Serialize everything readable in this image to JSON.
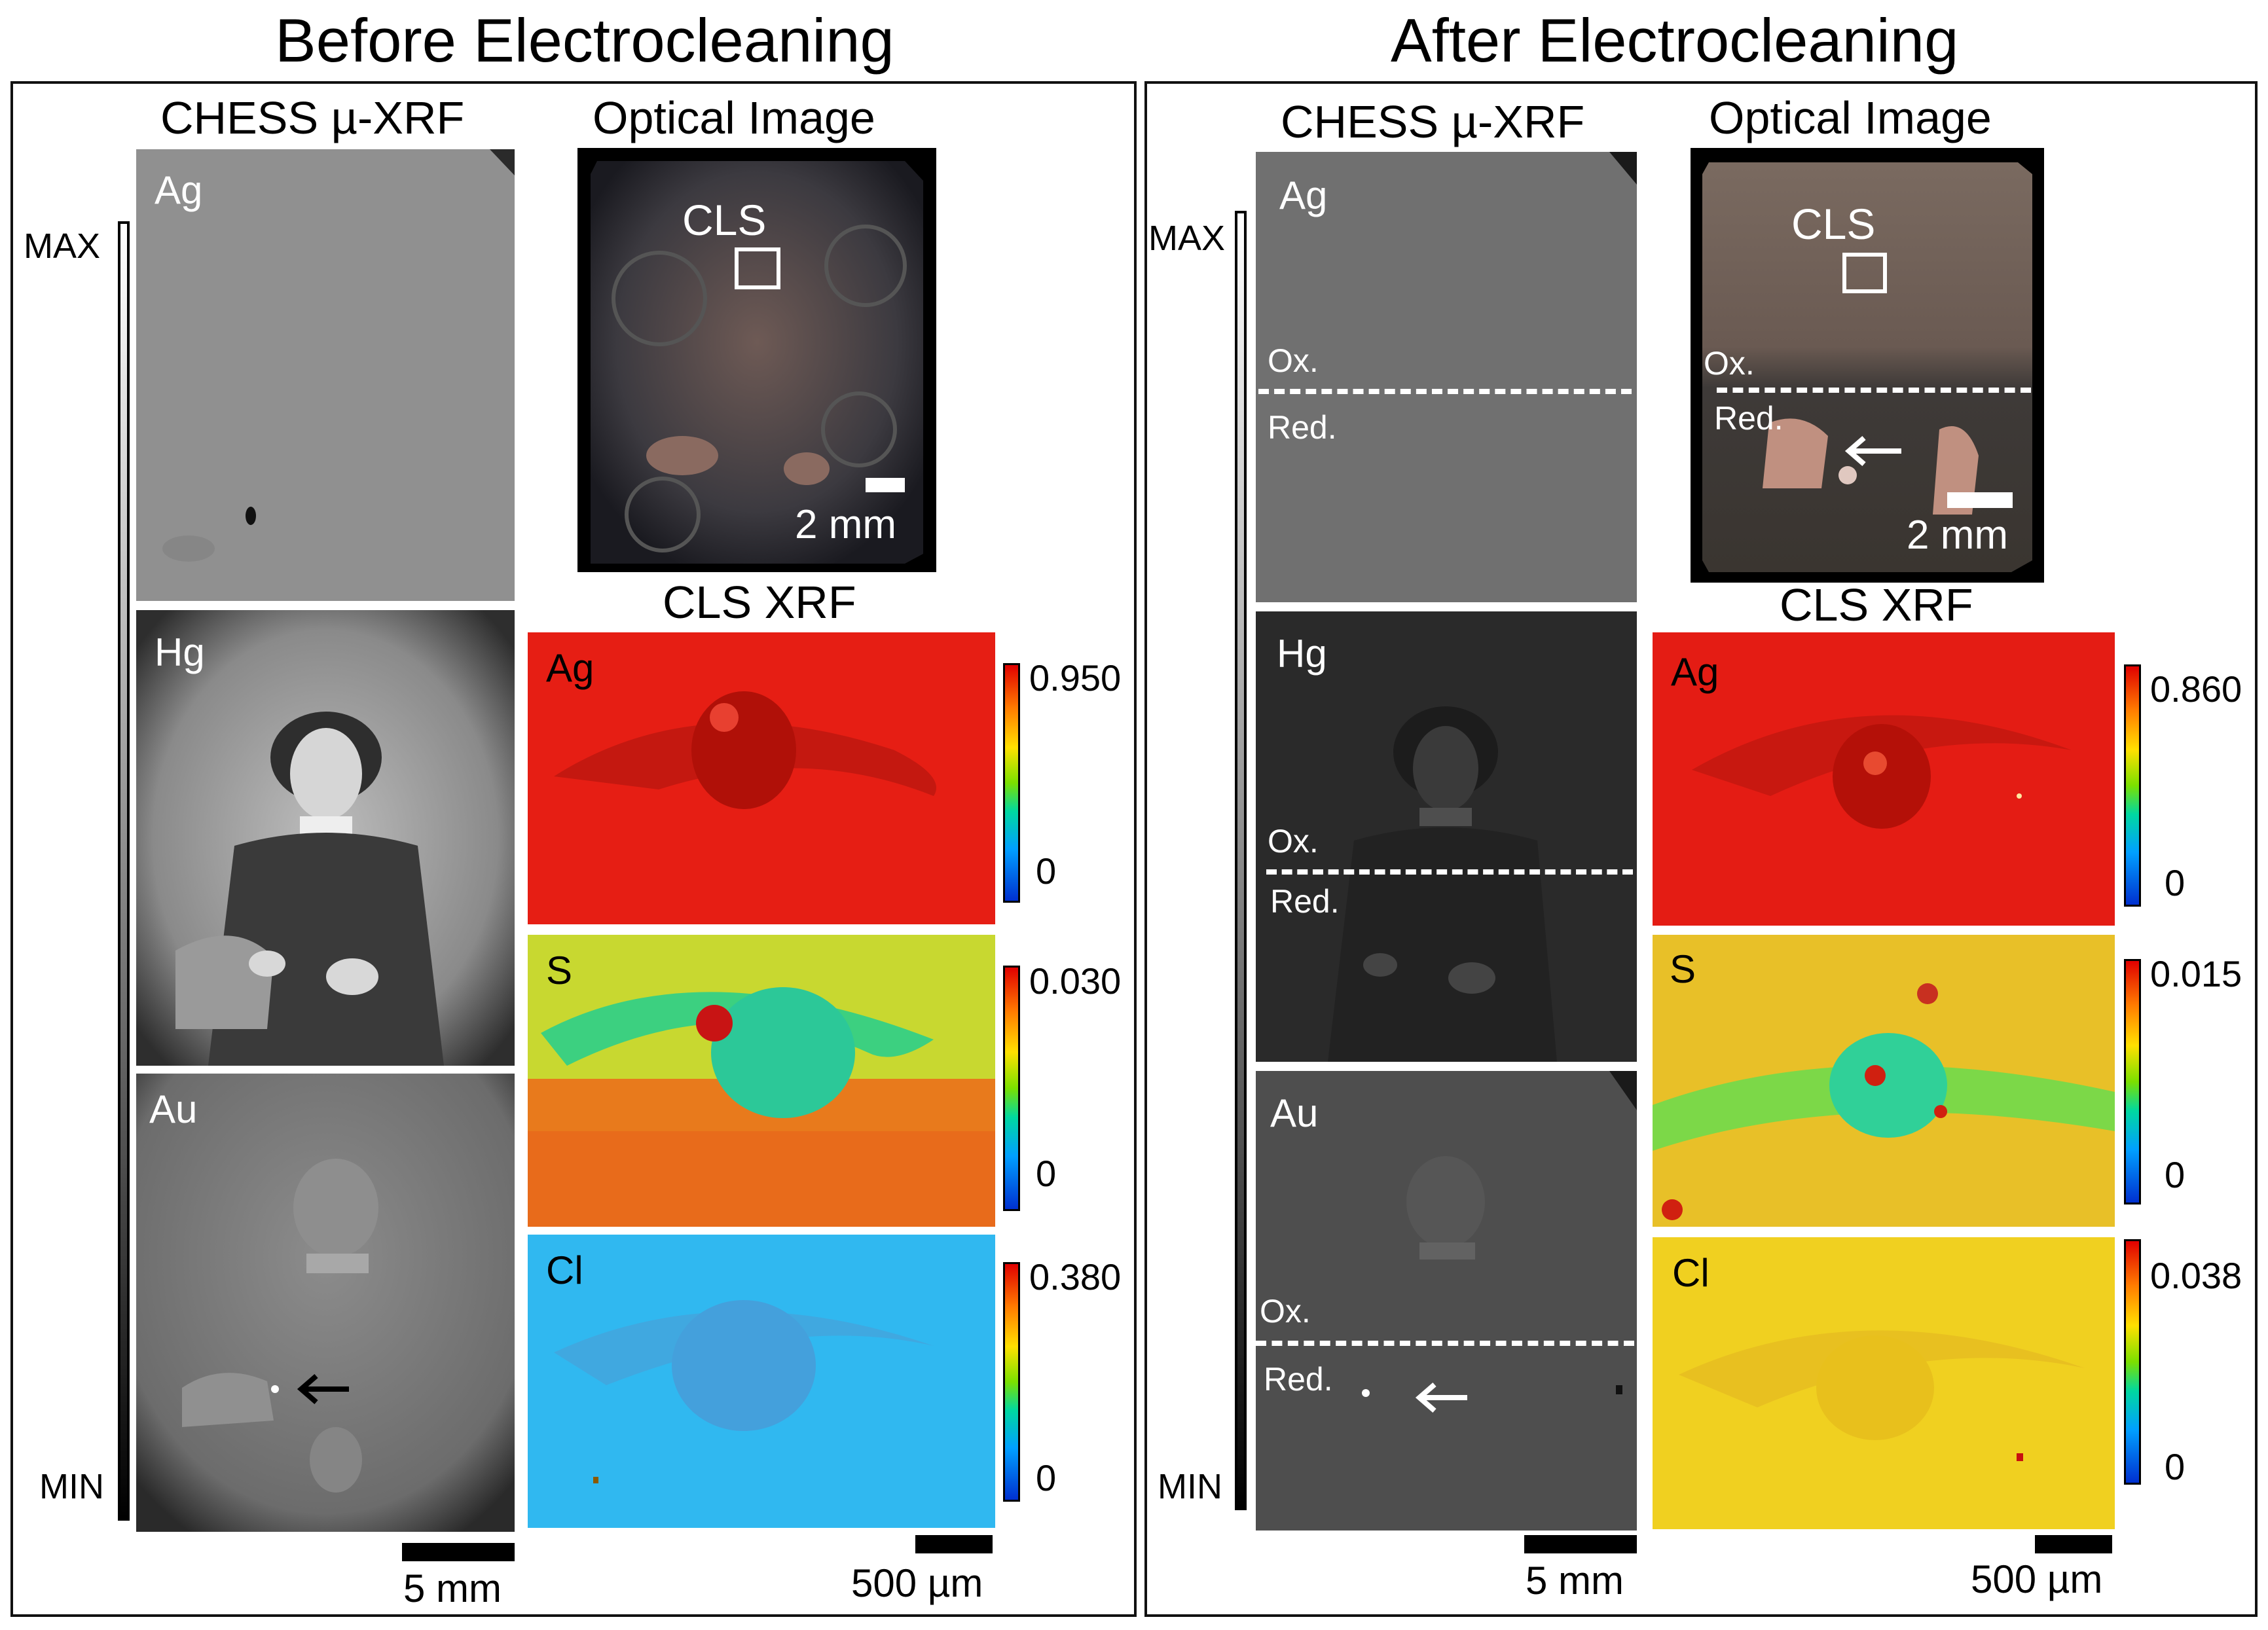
{
  "panels": {
    "before": {
      "title": "Before Electrocleaning",
      "chess_header": "CHESS µ-XRF",
      "optical_header": "Optical Image",
      "cls_header": "CLS XRF",
      "gray_max": "MAX",
      "gray_min": "MIN",
      "chess_tiles": [
        "Ag",
        "Hg",
        "Au"
      ],
      "optical_box_label": "CLS",
      "optical_scale": "2 mm",
      "cls_tiles": [
        {
          "element": "Ag",
          "max": "0.950",
          "min": "0"
        },
        {
          "element": "S",
          "max": "0.030",
          "min": "0"
        },
        {
          "element": "Cl",
          "max": "0.380",
          "min": "0"
        }
      ],
      "chess_scale": "5 mm",
      "cls_scale": "500 µm"
    },
    "after": {
      "title": "After Electrocleaning",
      "chess_header": "CHESS µ-XRF",
      "optical_header": "Optical Image",
      "cls_header": "CLS XRF",
      "gray_max": "MAX",
      "gray_min": "MIN",
      "chess_tiles": [
        "Ag",
        "Hg",
        "Au"
      ],
      "ox_label": "Ox.",
      "red_label": "Red.",
      "optical_box_label": "CLS",
      "optical_scale": "2 mm",
      "cls_tiles": [
        {
          "element": "Ag",
          "max": "0.860",
          "min": "0"
        },
        {
          "element": "S",
          "max": "0.015",
          "min": "0"
        },
        {
          "element": "Cl",
          "max": "0.038",
          "min": "0"
        }
      ],
      "chess_scale": "5 mm",
      "cls_scale": "500 µm"
    }
  }
}
